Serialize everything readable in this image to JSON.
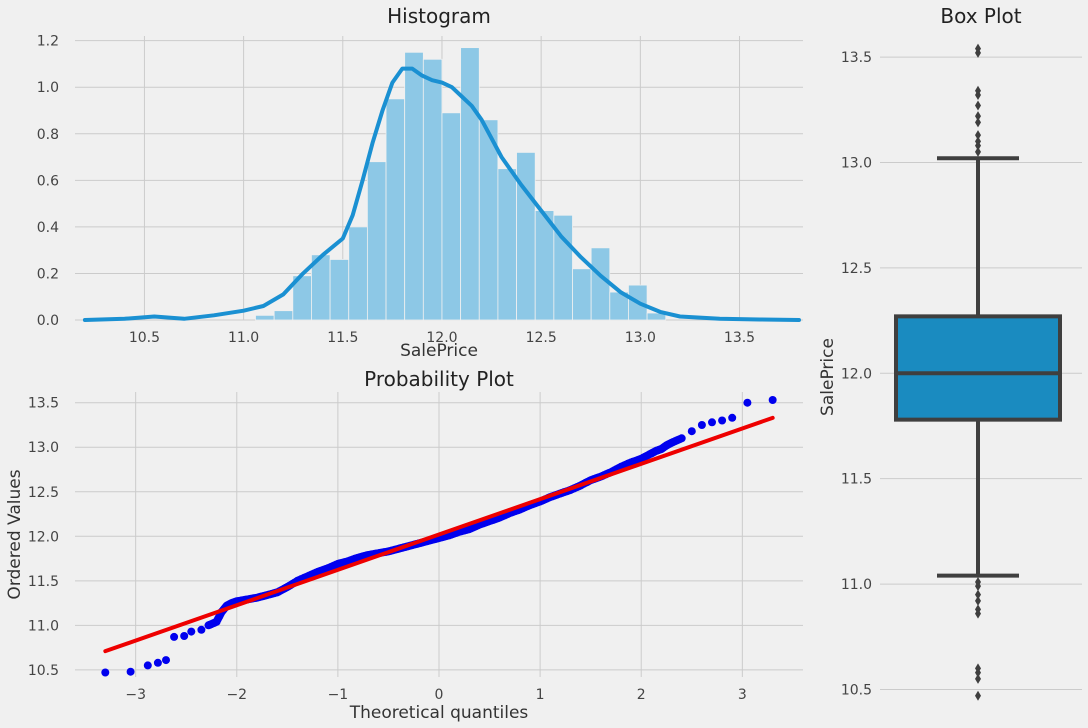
{
  "chart_data": [
    {
      "type": "bar",
      "title": "Histogram",
      "xlabel": "SalePrice",
      "ylabel": "",
      "xlim": [
        10.15,
        13.82
      ],
      "ylim": [
        0,
        1.22
      ],
      "xticks": [
        "10.5",
        "11.0",
        "11.5",
        "12.0",
        "12.5",
        "13.0",
        "13.5"
      ],
      "yticks": [
        "0.0",
        "0.2",
        "0.4",
        "0.6",
        "0.8",
        "1.0",
        "1.2"
      ],
      "bin_width": 0.094,
      "bins": [
        {
          "x0": 11.06,
          "value": 0.02
        },
        {
          "x0": 11.154,
          "value": 0.04
        },
        {
          "x0": 11.248,
          "value": 0.19
        },
        {
          "x0": 11.342,
          "value": 0.28
        },
        {
          "x0": 11.436,
          "value": 0.26
        },
        {
          "x0": 11.53,
          "value": 0.4
        },
        {
          "x0": 11.624,
          "value": 0.68
        },
        {
          "x0": 11.718,
          "value": 0.95
        },
        {
          "x0": 11.812,
          "value": 1.15
        },
        {
          "x0": 11.906,
          "value": 1.12
        },
        {
          "x0": 12.0,
          "value": 0.89
        },
        {
          "x0": 12.094,
          "value": 1.17
        },
        {
          "x0": 12.188,
          "value": 0.86
        },
        {
          "x0": 12.282,
          "value": 0.65
        },
        {
          "x0": 12.376,
          "value": 0.72
        },
        {
          "x0": 12.47,
          "value": 0.47
        },
        {
          "x0": 12.564,
          "value": 0.45
        },
        {
          "x0": 12.658,
          "value": 0.22
        },
        {
          "x0": 12.752,
          "value": 0.31
        },
        {
          "x0": 12.846,
          "value": 0.12
        },
        {
          "x0": 12.94,
          "value": 0.15
        },
        {
          "x0": 13.034,
          "value": 0.03
        }
      ],
      "kde": {
        "x": [
          10.2,
          10.4,
          10.55,
          10.7,
          10.85,
          11.0,
          11.1,
          11.2,
          11.3,
          11.4,
          11.5,
          11.55,
          11.6,
          11.65,
          11.7,
          11.75,
          11.8,
          11.85,
          11.9,
          11.95,
          12.0,
          12.05,
          12.1,
          12.15,
          12.2,
          12.25,
          12.3,
          12.4,
          12.5,
          12.6,
          12.7,
          12.8,
          12.9,
          13.0,
          13.1,
          13.2,
          13.4,
          13.6,
          13.8
        ],
        "y": [
          0.0,
          0.005,
          0.015,
          0.005,
          0.02,
          0.04,
          0.06,
          0.11,
          0.2,
          0.28,
          0.35,
          0.45,
          0.6,
          0.76,
          0.9,
          1.02,
          1.08,
          1.08,
          1.05,
          1.03,
          1.02,
          1.0,
          0.96,
          0.92,
          0.86,
          0.78,
          0.7,
          0.58,
          0.47,
          0.36,
          0.27,
          0.19,
          0.12,
          0.07,
          0.035,
          0.015,
          0.005,
          0.002,
          0.0
        ]
      },
      "grid": true,
      "colors": {
        "bars": "#8dc8e6",
        "line": "#1a90d2"
      }
    },
    {
      "type": "scatter",
      "title": "Probability Plot",
      "xlabel": "Theoretical quantiles",
      "ylabel": "Ordered Values",
      "xlim": [
        -3.6,
        3.6
      ],
      "ylim": [
        10.42,
        13.62
      ],
      "xticks": [
        "−3",
        "−2",
        "−1",
        "0",
        "1",
        "2",
        "3"
      ],
      "yticks": [
        "10.5",
        "11.0",
        "11.5",
        "12.0",
        "12.5",
        "13.0",
        "13.5"
      ],
      "points": [
        [
          -3.3,
          10.47
        ],
        [
          -3.05,
          10.48
        ],
        [
          -2.88,
          10.55
        ],
        [
          -2.78,
          10.58
        ],
        [
          -2.7,
          10.61
        ],
        [
          -2.62,
          10.87
        ],
        [
          -2.52,
          10.88
        ],
        [
          -2.45,
          10.93
        ],
        [
          -2.35,
          10.95
        ],
        [
          -2.28,
          11.0
        ],
        [
          -2.2,
          11.04
        ],
        [
          -2.15,
          11.15
        ],
        [
          -2.1,
          11.22
        ],
        [
          -2.05,
          11.25
        ],
        [
          -2.0,
          11.27
        ],
        [
          -1.9,
          11.29
        ],
        [
          -1.8,
          11.31
        ],
        [
          -1.7,
          11.34
        ],
        [
          -1.6,
          11.37
        ],
        [
          -1.5,
          11.43
        ],
        [
          -1.4,
          11.5
        ],
        [
          -1.3,
          11.55
        ],
        [
          -1.2,
          11.6
        ],
        [
          -1.1,
          11.64
        ],
        [
          -1.0,
          11.69
        ],
        [
          -0.9,
          11.72
        ],
        [
          -0.8,
          11.76
        ],
        [
          -0.7,
          11.79
        ],
        [
          -0.6,
          11.81
        ],
        [
          -0.5,
          11.83
        ],
        [
          -0.4,
          11.86
        ],
        [
          -0.3,
          11.89
        ],
        [
          -0.2,
          11.92
        ],
        [
          -0.1,
          11.95
        ],
        [
          0.0,
          11.98
        ],
        [
          0.1,
          12.01
        ],
        [
          0.2,
          12.05
        ],
        [
          0.3,
          12.08
        ],
        [
          0.4,
          12.13
        ],
        [
          0.5,
          12.17
        ],
        [
          0.6,
          12.21
        ],
        [
          0.7,
          12.26
        ],
        [
          0.8,
          12.3
        ],
        [
          0.9,
          12.35
        ],
        [
          1.0,
          12.39
        ],
        [
          1.1,
          12.44
        ],
        [
          1.2,
          12.48
        ],
        [
          1.3,
          12.52
        ],
        [
          1.4,
          12.57
        ],
        [
          1.5,
          12.63
        ],
        [
          1.6,
          12.67
        ],
        [
          1.7,
          12.72
        ],
        [
          1.8,
          12.78
        ],
        [
          1.9,
          12.83
        ],
        [
          2.0,
          12.87
        ],
        [
          2.1,
          12.93
        ],
        [
          2.15,
          12.96
        ],
        [
          2.2,
          12.98
        ],
        [
          2.25,
          13.02
        ],
        [
          2.3,
          13.05
        ],
        [
          2.4,
          13.1
        ],
        [
          2.5,
          13.18
        ],
        [
          2.6,
          13.25
        ],
        [
          2.7,
          13.28
        ],
        [
          2.8,
          13.3
        ],
        [
          2.9,
          13.33
        ],
        [
          3.05,
          13.5
        ],
        [
          3.3,
          13.53
        ]
      ],
      "fit_line": {
        "x": [
          -3.3,
          3.3
        ],
        "y": [
          10.71,
          13.33
        ]
      },
      "grid": true,
      "colors": {
        "points": "#0000ee",
        "line": "#ee0000"
      }
    },
    {
      "type": "box",
      "title": "Box Plot",
      "ylabel": "SalePrice",
      "ylim": [
        10.45,
        13.6
      ],
      "yticks": [
        "10.5",
        "11.0",
        "11.5",
        "12.0",
        "12.5",
        "13.0",
        "13.5"
      ],
      "stats": {
        "whisker_low": 11.04,
        "q1": 11.78,
        "median": 12.0,
        "q3": 12.27,
        "whisker_high": 13.02
      },
      "outliers": [
        10.47,
        10.55,
        10.58,
        10.6,
        10.86,
        10.88,
        10.92,
        10.95,
        10.99,
        11.01,
        13.05,
        13.08,
        13.1,
        13.13,
        13.19,
        13.22,
        13.27,
        13.32,
        13.34,
        13.52,
        13.54
      ],
      "grid": true,
      "colors": {
        "box": "#1a8bc0",
        "edge": "#3f3f3f"
      }
    }
  ]
}
